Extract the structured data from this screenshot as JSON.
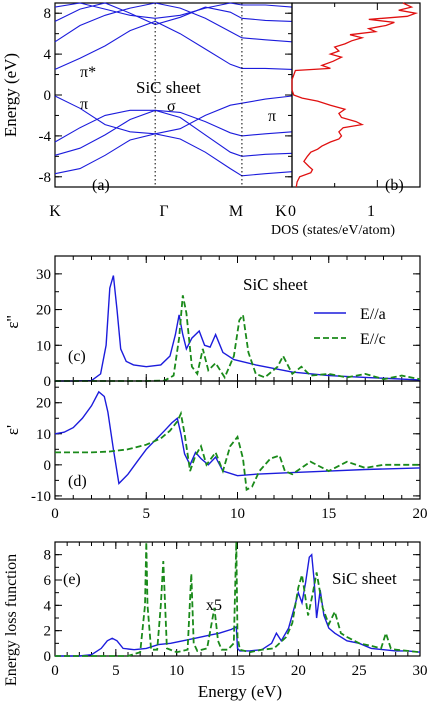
{
  "chart_data": [
    {
      "type": "line",
      "panel_label": "(a)",
      "ylabel": "Energy (eV)",
      "annotation": "SiC sheet",
      "band_labels": [
        "π*",
        "π",
        "σ",
        "π"
      ],
      "ylim": [
        -9,
        9
      ],
      "yticks": [
        "-8",
        "-4",
        "0",
        "4",
        "8"
      ],
      "kpath": [
        "K",
        "Γ",
        "M",
        "K"
      ],
      "kpos": [
        0,
        1,
        1.866,
        2.366
      ],
      "series": [
        {
          "x": [
            0,
            0.25,
            0.5,
            0.75,
            1,
            1.25,
            1.5,
            1.75,
            1.866,
            2.1,
            2.366
          ],
          "values": [
            -7.7,
            -7.2,
            -5.9,
            -4.4,
            -3.8,
            -4.3,
            -5.6,
            -7.2,
            -7.9,
            -7.7,
            -7.5
          ]
        },
        {
          "x": [
            0,
            0.25,
            0.5,
            0.75,
            1,
            1.25,
            1.5,
            1.75,
            1.866,
            2.1,
            2.366
          ],
          "values": [
            -5.9,
            -5.2,
            -3.9,
            -2.4,
            -1.5,
            -2.2,
            -3.9,
            -5.6,
            -6.0,
            -5.8,
            -5.7
          ]
        },
        {
          "x": [
            0,
            0.25,
            0.5,
            0.75,
            1,
            1.25,
            1.5,
            1.75,
            1.866,
            2.1,
            2.366
          ],
          "values": [
            -4.6,
            -3.2,
            -2.0,
            -1.5,
            -1.5,
            -1.7,
            -2.6,
            -3.7,
            -4.0,
            -3.8,
            -3.6
          ]
        },
        {
          "x": [
            0,
            0.25,
            0.5,
            0.75,
            1,
            1.25,
            1.5,
            1.75,
            1.866,
            2.1,
            2.366
          ],
          "values": [
            -0.1,
            -1.3,
            -2.9,
            -3.6,
            -3.8,
            -3.3,
            -2.0,
            -1.0,
            -0.8,
            -0.4,
            -0.1
          ]
        },
        {
          "x": [
            0,
            0.25,
            0.5,
            0.75,
            1,
            1.25,
            1.5,
            1.75,
            1.866,
            2.1,
            2.366
          ],
          "values": [
            2.5,
            3.6,
            4.8,
            6.3,
            7.2,
            6.0,
            4.5,
            3.0,
            2.6,
            2.6,
            2.5
          ]
        },
        {
          "x": [
            0,
            0.25,
            0.5,
            0.75,
            1,
            1.25,
            1.5,
            1.75,
            1.866,
            2.1,
            2.366
          ],
          "values": [
            5.2,
            6.8,
            7.8,
            8.5,
            9.0,
            8.5,
            7.5,
            6.2,
            5.6,
            5.4,
            5.2
          ]
        },
        {
          "x": [
            0,
            0.25,
            0.5,
            0.75,
            1,
            1.25,
            1.5,
            1.75,
            1.866,
            2.1,
            2.366
          ],
          "values": [
            7.2,
            8.4,
            9.0,
            8.0,
            6.9,
            7.6,
            8.6,
            8.1,
            7.5,
            7.3,
            7.2
          ]
        },
        {
          "x": [
            0,
            0.25,
            0.5,
            0.75,
            1,
            1.25,
            1.5,
            1.75,
            1.866,
            2.1,
            2.366
          ],
          "values": [
            8.6,
            9.0,
            8.4,
            7.8,
            7.5,
            7.8,
            8.5,
            9.0,
            8.8,
            8.8,
            8.6
          ]
        }
      ]
    },
    {
      "type": "line",
      "panel_label": "(b)",
      "xlabel": "DOS (states/eV/atom)",
      "xlim": [
        0,
        1.5
      ],
      "xticks": [
        "0",
        "1"
      ],
      "ylim": [
        -9,
        9
      ],
      "series": [
        {
          "values": [
            [
              -9,
              0.05
            ],
            [
              -8.5,
              0.06
            ],
            [
              -8,
              0.09
            ],
            [
              -7.6,
              0.22
            ],
            [
              -7.3,
              0.24
            ],
            [
              -7,
              0.2
            ],
            [
              -6.5,
              0.14
            ],
            [
              -6,
              0.18
            ],
            [
              -5.6,
              0.22
            ],
            [
              -5.3,
              0.3
            ],
            [
              -5,
              0.35
            ],
            [
              -4.6,
              0.45
            ],
            [
              -4.3,
              0.55
            ],
            [
              -4,
              0.58
            ],
            [
              -3.6,
              0.55
            ],
            [
              -3.2,
              0.6
            ],
            [
              -2.9,
              0.82
            ],
            [
              -2.6,
              0.75
            ],
            [
              -2.2,
              0.58
            ],
            [
              -1.8,
              0.55
            ],
            [
              -1.4,
              0.62
            ],
            [
              -1.0,
              0.45
            ],
            [
              -0.6,
              0.3
            ],
            [
              -0.3,
              0.12
            ],
            [
              0,
              0.02
            ],
            [
              0.5,
              0.0
            ],
            [
              1.5,
              0.0
            ],
            [
              2.4,
              0.04
            ],
            [
              2.6,
              0.45
            ],
            [
              2.9,
              0.35
            ],
            [
              3.3,
              0.48
            ],
            [
              3.7,
              0.58
            ],
            [
              4.0,
              0.45
            ],
            [
              4.3,
              0.55
            ],
            [
              4.7,
              0.5
            ],
            [
              5.0,
              0.62
            ],
            [
              5.3,
              0.7
            ],
            [
              5.6,
              0.82
            ],
            [
              5.9,
              0.68
            ],
            [
              6.2,
              0.98
            ],
            [
              6.5,
              0.9
            ],
            [
              6.8,
              1.1
            ],
            [
              7.1,
              1.2
            ],
            [
              7.4,
              0.9
            ],
            [
              7.7,
              1.35
            ],
            [
              8.0,
              1.45
            ],
            [
              8.3,
              1.25
            ],
            [
              8.6,
              1.4
            ],
            [
              9,
              1.3
            ]
          ]
        }
      ]
    },
    {
      "type": "line",
      "panel_label": "(c)",
      "annotation": "SiC sheet",
      "ylabel": "ε''",
      "xlim": [
        0,
        20
      ],
      "ylim": [
        0,
        35
      ],
      "yticks": [
        "0",
        "10",
        "20",
        "30"
      ],
      "legend": [
        "E//a",
        "E//c"
      ],
      "series": [
        {
          "name": "E//a",
          "x": [
            0,
            1,
            2,
            2.5,
            2.8,
            3.0,
            3.2,
            3.4,
            3.6,
            3.9,
            4.3,
            5.0,
            5.8,
            6.3,
            6.6,
            6.8,
            7.0,
            7.2,
            7.5,
            7.9,
            8.2,
            8.5,
            8.8,
            9.2,
            9.8,
            11,
            13,
            15,
            17,
            20
          ],
          "values": [
            0,
            0,
            0.1,
            2,
            10,
            26,
            29.5,
            20,
            9,
            5.5,
            4.5,
            4,
            4.5,
            7,
            13,
            18.5,
            13,
            9,
            12,
            14,
            10,
            9.5,
            13,
            8,
            6,
            4.5,
            2.5,
            1.5,
            1,
            0.3
          ]
        },
        {
          "name": "E//c",
          "x": [
            0,
            5,
            6,
            6.5,
            6.8,
            7.0,
            7.2,
            7.5,
            7.8,
            8.1,
            8.4,
            8.8,
            9.3,
            9.8,
            10.1,
            10.3,
            10.6,
            11.0,
            11.5,
            12.2,
            12.5,
            13.0,
            13.5,
            14,
            15,
            16,
            17,
            18,
            19,
            20
          ],
          "values": [
            0,
            0,
            0.1,
            1.5,
            12,
            24,
            19,
            4,
            2,
            9,
            3,
            5,
            1,
            7,
            17,
            18.5,
            8,
            2,
            1,
            4,
            7,
            2,
            4,
            1.5,
            2,
            1,
            2,
            0.5,
            1.5,
            0.5
          ]
        }
      ]
    },
    {
      "type": "line",
      "panel_label": "(d)",
      "ylabel": "ε'",
      "xlim": [
        0,
        20
      ],
      "ylim": [
        -11,
        27
      ],
      "yticks": [
        "-10",
        "0",
        "10",
        "20"
      ],
      "xticks": [
        "0",
        "5",
        "10",
        "15",
        "20"
      ],
      "series": [
        {
          "name": "E//a",
          "x": [
            0,
            0.5,
            1.0,
            1.5,
            2.0,
            2.4,
            2.7,
            2.9,
            3.2,
            3.5,
            4.0,
            4.5,
            5.0,
            5.5,
            6.0,
            6.4,
            6.7,
            6.9,
            7.1,
            7.4,
            7.7,
            8.0,
            8.4,
            8.8,
            9.2,
            10,
            11,
            13,
            15,
            17,
            20
          ],
          "values": [
            10,
            10.5,
            12,
            15,
            19,
            23.5,
            22,
            17,
            5,
            -6,
            -3,
            1,
            5,
            8,
            11,
            13.5,
            15,
            10,
            3.5,
            0,
            4,
            2,
            0,
            2.5,
            -2,
            -3.5,
            -3,
            -2.5,
            -2,
            -1.5,
            -1
          ]
        },
        {
          "name": "E//c",
          "x": [
            0,
            1,
            2,
            3,
            4,
            5,
            5.8,
            6.3,
            6.7,
            6.9,
            7.1,
            7.4,
            7.7,
            8.0,
            8.3,
            8.8,
            9.2,
            9.6,
            10.0,
            10.3,
            10.5,
            10.8,
            11.2,
            11.8,
            12.3,
            12.6,
            13,
            14,
            15,
            16,
            17,
            18,
            20
          ],
          "values": [
            4,
            4,
            4,
            4.3,
            5,
            6.5,
            8.5,
            11,
            14,
            16.5,
            10,
            -2,
            3,
            6,
            0,
            4,
            -2,
            6,
            9,
            2,
            -8,
            -7,
            -2,
            2,
            3,
            -2,
            -3,
            1,
            -2,
            1,
            -1,
            0,
            0
          ]
        }
      ]
    },
    {
      "type": "line",
      "panel_label": "(e)",
      "annotation": "SiC sheet",
      "scale_note": "x5",
      "ylabel": "Energy loss function",
      "xlabel": "Energy (eV)",
      "xlim": [
        0,
        30
      ],
      "ylim": [
        0,
        9
      ],
      "yticks": [
        "0",
        "2",
        "4",
        "6",
        "8"
      ],
      "xticks": [
        "0",
        "5",
        "10",
        "15",
        "20",
        "25",
        "30"
      ],
      "series": [
        {
          "name": "E//a",
          "x": [
            0,
            2,
            3,
            3.8,
            4.3,
            4.7,
            5.1,
            5.6,
            6.5,
            7.5,
            8.5,
            9.5,
            10.5,
            11.5,
            12.5,
            13.5,
            14.5,
            14.9,
            15.0,
            15.2,
            16,
            17,
            17.8,
            18.2,
            18.6,
            19.2,
            19.6,
            20.0,
            20.3,
            20.6,
            20.9,
            21.1,
            21.3,
            21.5,
            21.8,
            22.1,
            22.5,
            23,
            24,
            25,
            26,
            27,
            28,
            29,
            30
          ],
          "values": [
            0,
            0,
            0.1,
            0.6,
            1.2,
            1.4,
            1.2,
            0.6,
            0.5,
            0.6,
            0.9,
            1.0,
            1.2,
            1.4,
            1.6,
            1.8,
            2.1,
            2.3,
            0.6,
            0.4,
            0.4,
            0.5,
            1.0,
            1.8,
            1.2,
            2.2,
            3.6,
            5.0,
            4.2,
            5.8,
            7.8,
            8.0,
            6.0,
            3.0,
            5.2,
            3.2,
            2.2,
            1.8,
            1.2,
            1.0,
            0.6,
            0.5,
            0.4,
            0.4,
            0.3
          ]
        },
        {
          "name": "E//c",
          "x": [
            0,
            6,
            7.0,
            7.4,
            7.5,
            7.6,
            7.9,
            8.4,
            8.7,
            8.9,
            9.2,
            10,
            10.9,
            11.2,
            11.4,
            11.7,
            12.5,
            13.1,
            13.4,
            13.7,
            14.2,
            14.7,
            14.9,
            15.0,
            15.2,
            16,
            17,
            18,
            19,
            19.5,
            20,
            20.3,
            20.8,
            21.2,
            21.5,
            22.0,
            22.5,
            23.0,
            23.5,
            24,
            25,
            26,
            26.8,
            27.2,
            27.6,
            28,
            29,
            30
          ],
          "values": [
            0,
            0,
            0.3,
            4,
            9,
            4,
            0.5,
            0.5,
            4,
            7.5,
            0.6,
            0.3,
            0.5,
            6.5,
            1,
            0.4,
            0.6,
            3.8,
            1.2,
            0.5,
            0.5,
            1,
            9,
            1.5,
            0.5,
            0.3,
            0.5,
            0.6,
            1.5,
            2.6,
            5.4,
            6.4,
            3.2,
            5.0,
            6.6,
            3.8,
            2.5,
            3.5,
            1.8,
            1.5,
            1.0,
            0.8,
            0.6,
            1.8,
            0.6,
            0.5,
            0.4,
            0.3
          ]
        }
      ]
    }
  ]
}
